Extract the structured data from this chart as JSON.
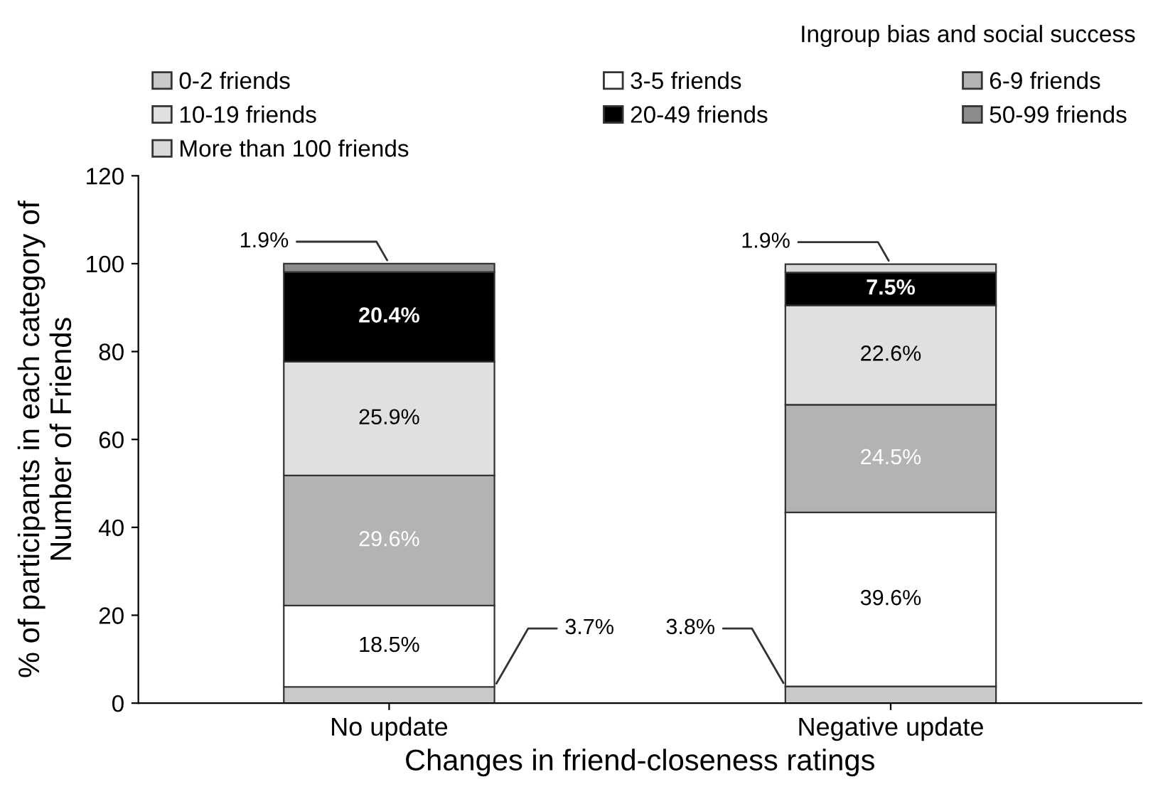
{
  "chart_data": {
    "type": "bar",
    "stacked": true,
    "title": "Ingroup bias and social success",
    "xlabel": "Changes in friend-closeness ratings",
    "ylabel": "% of participants in each category of\nNumber of Friends",
    "categories": [
      "No update",
      "Negative update"
    ],
    "series": [
      {
        "name": "0-2 friends",
        "color": "#c9c9c9",
        "values": [
          3.7,
          3.8
        ],
        "value_labels": [
          "3.7%",
          "3.8%"
        ]
      },
      {
        "name": "3-5 friends",
        "color": "#ffffff",
        "values": [
          18.5,
          39.6
        ],
        "value_labels": [
          "18.5%",
          "39.6%"
        ]
      },
      {
        "name": "6-9 friends",
        "color": "#b3b3b3",
        "values": [
          29.6,
          24.5
        ],
        "value_labels": [
          "29.6%",
          "24.5%"
        ]
      },
      {
        "name": "10-19 friends",
        "color": "#e0e0e0",
        "values": [
          25.9,
          22.6
        ],
        "value_labels": [
          "25.9%",
          "22.6%"
        ]
      },
      {
        "name": "20-49 friends",
        "color": "#000000",
        "values": [
          20.4,
          7.5
        ],
        "value_labels": [
          "20.4%",
          "7.5%"
        ]
      },
      {
        "name": "50-99 friends",
        "color": "#8c8c8c",
        "values": [
          1.9,
          null
        ],
        "value_labels": [
          "1.9%",
          null
        ]
      },
      {
        "name": "More than 100 friends",
        "color": "#d9d9d9",
        "values": [
          null,
          1.9
        ],
        "value_labels": [
          null,
          "1.9%"
        ]
      }
    ],
    "ylim": [
      0,
      120
    ],
    "yticks": [
      0,
      20,
      40,
      60,
      80,
      100,
      120
    ],
    "grid": false,
    "legend": "top"
  }
}
